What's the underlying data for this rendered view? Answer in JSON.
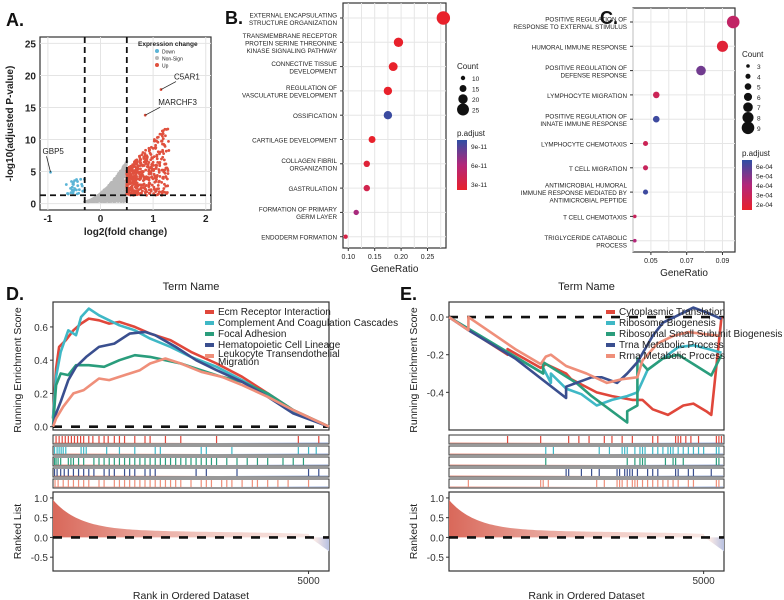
{
  "chart_data": [
    {
      "panel": "A.",
      "type": "scatter",
      "title": "",
      "xlabel": "log2(fold change)",
      "ylabel": "-log10(adjusted P-value)",
      "xlim": [
        -1.15,
        2.1
      ],
      "ylim": [
        -1,
        26
      ],
      "xticks": [
        -1,
        0,
        1,
        2
      ],
      "yticks": [
        0,
        5,
        10,
        15,
        20,
        25
      ],
      "grid": true,
      "vlines": [
        -0.3,
        0.5
      ],
      "hline": 1.3,
      "legend": {
        "title": "Expression change",
        "position": "top-right",
        "entries": [
          {
            "label": "Down",
            "color": "#5ab4d6"
          },
          {
            "label": "Non-Sign",
            "color": "#b8b8b8"
          },
          {
            "label": "Up",
            "color": "#e0513e"
          }
        ]
      },
      "annotations": [
        {
          "label": "C5AR1",
          "x": 1.15,
          "y": 17.8
        },
        {
          "label": "MARCHF3",
          "x": 0.85,
          "y": 13.8
        },
        {
          "label": "GBP5",
          "x": -0.95,
          "y": 4.9
        }
      ],
      "groups": {
        "down": {
          "x_range": [
            -0.65,
            -0.3
          ],
          "y_range": [
            1.3,
            4
          ]
        },
        "nonsig": {
          "x_range": [
            -0.3,
            0.5
          ],
          "y_range": [
            0,
            8.5
          ]
        },
        "up": {
          "x_range": [
            0.5,
            1.3
          ],
          "y_range": [
            1.3,
            13
          ]
        }
      }
    },
    {
      "panel": "B.",
      "type": "scatter",
      "subtype": "dotplot",
      "xlabel": "GeneRatio",
      "xlim": [
        0.09,
        0.285
      ],
      "xticks": [
        0.1,
        0.15,
        0.2,
        0.25
      ],
      "xtick_labels": [
        "0.10",
        "0.15",
        "0.20",
        "0.25"
      ],
      "categories": [
        "EXTERNAL ENCAPSULATING\nSTRUCTURE ORGANIZATION",
        "TRANSMEMBRANE RECEPTOR\nPROTEIN SERINE THREONINE\nKINASE SIGNALING PATHWAY",
        "CONNECTIVE TISSUE\nDEVELOPMENT",
        "REGULATION OF\nVASCULATURE DEVELOPMENT",
        "OSSIFICATION",
        "CARTILAGE DEVELOPMENT",
        "COLLAGEN FIBRIL\nORGANIZATION",
        "GASTRULATION",
        "FORMATION OF PRIMARY\nGERM LAYER",
        "ENDODERM FORMATION"
      ],
      "gene_ratio": [
        0.28,
        0.195,
        0.185,
        0.175,
        0.175,
        0.145,
        0.135,
        0.135,
        0.115,
        0.095
      ],
      "count": [
        28,
        20,
        19,
        18,
        18,
        15,
        14,
        14,
        12,
        10
      ],
      "p_adjust": [
        1e-12,
        1e-12,
        1e-12,
        1e-12,
        1.05e-10,
        1e-12,
        1e-11,
        2.5e-11,
        6e-11,
        2e-11
      ],
      "size_legend": {
        "title": "Count",
        "values": [
          10,
          15,
          20,
          25
        ]
      },
      "color_legend": {
        "title": "p.adjust",
        "ticks": [
          "9e-11",
          "6e-11",
          "3e-11"
        ],
        "range": [
          1e-12,
          1.1e-10
        ],
        "low_color": "#e8212b",
        "high_color": "#2f4fa4"
      }
    },
    {
      "panel": "C.",
      "type": "scatter",
      "subtype": "dotplot",
      "xlabel": "GeneRatio",
      "xlim": [
        0.04,
        0.097
      ],
      "xticks": [
        0.05,
        0.07,
        0.09
      ],
      "xtick_labels": [
        "0.05",
        "0.07",
        "0.09"
      ],
      "categories": [
        "POSITIVE REGULATION OF\nRESPONSE TO EXTERNAL STIMULUS",
        "HUMORAL IMMUNE RESPONSE",
        "POSITIVE REGULATION OF\nDEFENSE RESPONSE",
        "LYMPHOCYTE MIGRATION",
        "POSITIVE REGULATION OF\nINNATE IMMUNE RESPONSE",
        "LYMPHOCYTE CHEMOTAXIS",
        "T CELL MIGRATION",
        "ANTIMICROBIAL HUMORAL\nIMMUNE RESPONSE MEDIATED BY\nANTIMICROBIAL PEPTIDE",
        "T CELL CHEMOTAXIS",
        "TRIGLYCERIDE CATABOLIC\nPROCESS"
      ],
      "gene_ratio": [
        0.096,
        0.09,
        0.078,
        0.053,
        0.053,
        0.047,
        0.047,
        0.047,
        0.041,
        0.041
      ],
      "count": [
        9,
        8,
        7,
        5,
        5,
        4,
        4,
        4,
        3,
        3
      ],
      "p_adjust": [
        0.00035,
        0.0002,
        0.00055,
        0.0003,
        0.00065,
        0.0003,
        0.00032,
        0.00065,
        0.00032,
        0.00042
      ],
      "size_legend": {
        "title": "Count",
        "values": [
          3,
          4,
          5,
          6,
          7,
          8,
          9
        ]
      },
      "color_legend": {
        "title": "p.adjust",
        "ticks": [
          "6e-04",
          "5e-04",
          "4e-04",
          "3e-04",
          "2e-04"
        ],
        "range": [
          0.00016,
          0.00068
        ],
        "low_color": "#e8212b",
        "high_color": "#2f4fa4"
      }
    },
    {
      "panel": "D.",
      "type": "line",
      "title": "Term Name",
      "ylabel": "Running Enrichment Score",
      "ylim": [
        -0.02,
        0.75
      ],
      "yticks": [
        0.0,
        0.2,
        0.4,
        0.6
      ],
      "xlim": [
        0,
        5400
      ],
      "series": [
        {
          "name": "Ecm Receptor Interaction",
          "color": "#e0473b",
          "x": [
            0,
            60,
            120,
            250,
            400,
            550,
            700,
            900,
            1100,
            1300,
            1600,
            1900,
            2300,
            2700,
            3200,
            3700,
            4200,
            4700,
            5400
          ],
          "y": [
            0.05,
            0.35,
            0.48,
            0.52,
            0.58,
            0.62,
            0.65,
            0.64,
            0.62,
            0.63,
            0.6,
            0.56,
            0.52,
            0.45,
            0.38,
            0.3,
            0.2,
            0.1,
            0.0
          ]
        },
        {
          "name": "Complement And Coagulation Cascades",
          "color": "#3fb8c6",
          "x": [
            0,
            60,
            150,
            300,
            450,
            550,
            700,
            900,
            1100,
            1300,
            1600,
            1900,
            2300,
            2700,
            3200,
            3700,
            4200,
            4700,
            5400
          ],
          "y": [
            0.05,
            0.3,
            0.45,
            0.58,
            0.55,
            0.66,
            0.71,
            0.67,
            0.64,
            0.61,
            0.58,
            0.53,
            0.48,
            0.42,
            0.36,
            0.28,
            0.19,
            0.09,
            0.0
          ]
        },
        {
          "name": "Focal Adhesion",
          "color": "#2a9d7c",
          "x": [
            0,
            60,
            150,
            300,
            450,
            700,
            1000,
            1300,
            1600,
            1900,
            2200,
            2500,
            2900,
            3300,
            3700,
            4200,
            4700,
            5400
          ],
          "y": [
            0.0,
            0.25,
            0.32,
            0.31,
            0.37,
            0.37,
            0.36,
            0.4,
            0.43,
            0.42,
            0.4,
            0.38,
            0.34,
            0.3,
            0.27,
            0.2,
            0.1,
            0.0
          ]
        },
        {
          "name": "Hematopoietic Cell Lineage",
          "color": "#3a4f8f",
          "x": [
            0,
            60,
            150,
            300,
            450,
            650,
            900,
            1200,
            1500,
            1800,
            2000,
            2400,
            2800,
            3200,
            3700,
            4200,
            4700,
            5400
          ],
          "y": [
            0.0,
            0.08,
            0.15,
            0.28,
            0.36,
            0.42,
            0.48,
            0.5,
            0.56,
            0.57,
            0.55,
            0.48,
            0.4,
            0.34,
            0.27,
            0.18,
            0.08,
            0.0
          ]
        },
        {
          "name": "Leukocyte Transendothelial\nMigration",
          "color": "#ef8f7a",
          "x": [
            0,
            60,
            200,
            400,
            600,
            900,
            1100,
            1400,
            1700,
            1900,
            2200,
            2500,
            2900,
            3300,
            3700,
            4200,
            4700,
            5400
          ],
          "y": [
            0.0,
            0.05,
            0.12,
            0.2,
            0.22,
            0.29,
            0.28,
            0.31,
            0.34,
            0.38,
            0.41,
            0.38,
            0.33,
            0.3,
            0.25,
            0.18,
            0.1,
            0.0
          ]
        }
      ],
      "legend_position": "top-right",
      "hits": [
        [
          60,
          120,
          180,
          240,
          300,
          360,
          420,
          480,
          540,
          600,
          700,
          780,
          900,
          1000,
          1080,
          1200,
          1300,
          1400,
          1600,
          1800,
          1900,
          2200,
          2500,
          3200,
          4800,
          5200
        ],
        [
          30,
          80,
          120,
          160,
          200,
          250,
          550,
          600,
          650,
          1050,
          1300,
          1600,
          2000,
          2100,
          2900,
          3000,
          3500,
          4800,
          5000,
          5150
        ],
        [
          30,
          60,
          100,
          150,
          300,
          350,
          400,
          500,
          600,
          800,
          900,
          1000,
          1100,
          1200,
          1300,
          1400,
          1500,
          1600,
          1700,
          1800,
          1900,
          2000,
          2100,
          2200,
          2300,
          2400,
          2500,
          2600,
          2700,
          2800,
          2900,
          3000,
          3100,
          3200,
          3400,
          3600,
          3800,
          4000,
          4200,
          4500,
          4700,
          4900
        ],
        [
          30,
          80,
          150,
          220,
          300,
          400,
          500,
          600,
          700,
          800,
          1000,
          1100,
          1200,
          1400,
          1500,
          1600,
          1800,
          1900,
          2000,
          2800,
          3000,
          3600,
          5000,
          5200
        ],
        [
          40,
          100,
          200,
          300,
          400,
          500,
          600,
          700,
          900,
          1000,
          1200,
          1300,
          1400,
          1500,
          1600,
          1700,
          1800,
          1900,
          2000,
          2100,
          2200,
          2300,
          2400,
          2500,
          2700,
          2900,
          3000,
          3100,
          3300,
          3400,
          3500,
          3700,
          3900,
          4000,
          4200,
          4400,
          4600,
          5000
        ]
      ],
      "ranked_list": {
        "ylabel": "Ranked List",
        "xlabel": "Rank in Ordered Dataset",
        "yticks": [
          1.0,
          0.5,
          0.0,
          -0.5
        ],
        "ylim": [
          -0.85,
          1.15
        ],
        "xticks": [
          5000
        ],
        "n": 5400,
        "max": 0.95,
        "min": -0.35
      }
    },
    {
      "panel": "E.",
      "type": "line",
      "title": "Term Name",
      "ylabel": "Running Enrichment Score",
      "ylim": [
        -0.6,
        0.08
      ],
      "yticks": [
        0.0,
        -0.2,
        -0.4
      ],
      "xlim": [
        0,
        5400
      ],
      "series": [
        {
          "name": "Cytoplasmic Translation",
          "color": "#e0473b",
          "x": [
            0,
            1150,
            1150,
            1800,
            1900,
            2300,
            2400,
            2900,
            3200,
            3600,
            3800,
            4000,
            4300,
            4600,
            4800,
            5050,
            5150,
            5350
          ],
          "y": [
            0.0,
            -0.2,
            -0.17,
            -0.27,
            -0.25,
            -0.3,
            -0.33,
            -0.4,
            -0.42,
            -0.44,
            -0.44,
            -0.49,
            -0.52,
            -0.47,
            -0.46,
            -0.5,
            -0.52,
            0.0
          ]
        },
        {
          "name": "Ribosome Biogenesis",
          "color": "#3fb8c6",
          "x": [
            0,
            1850,
            1850,
            2000,
            2000,
            2300,
            2600,
            2900,
            3200,
            3500,
            3700,
            3900,
            4200,
            4500,
            4800,
            5100,
            5350
          ],
          "y": [
            0.0,
            -0.3,
            -0.27,
            -0.35,
            -0.3,
            -0.38,
            -0.41,
            -0.47,
            -0.44,
            -0.42,
            -0.4,
            -0.28,
            -0.22,
            -0.16,
            -0.15,
            -0.17,
            -0.19
          ]
        },
        {
          "name": "Ribosomal Small Subunit Biogenesis",
          "color": "#2a9d7c",
          "x": [
            0,
            1850,
            1850,
            2500,
            2800,
            3500,
            3500,
            3700,
            3700,
            3900,
            4200,
            4500,
            4800,
            5150,
            5350
          ],
          "y": [
            0.0,
            -0.3,
            -0.24,
            -0.35,
            -0.42,
            -0.56,
            -0.5,
            -0.47,
            -0.22,
            -0.28,
            -0.22,
            -0.2,
            -0.25,
            -0.31,
            -0.2
          ]
        },
        {
          "name": "Trna Metabolic Process",
          "color": "#3a4f8f",
          "x": [
            0,
            380,
            380,
            1300,
            2300,
            2300,
            2800,
            3000,
            3300,
            3500,
            3700,
            4000,
            4200,
            4500,
            4800,
            5100,
            5350
          ],
          "y": [
            0.0,
            -0.07,
            -0.07,
            -0.22,
            -0.43,
            -0.37,
            -0.32,
            -0.32,
            -0.35,
            -0.3,
            -0.24,
            -0.1,
            -0.03,
            0.01,
            0.05,
            0.02,
            -0.01
          ]
        },
        {
          "name": "Rrna Metabolic Process",
          "color": "#ef8f7a",
          "x": [
            0,
            380,
            380,
            1300,
            1800,
            1900,
            2000,
            2300,
            2700,
            3100,
            3400,
            3700,
            3800,
            4100,
            4400,
            4700,
            5000,
            5350
          ],
          "y": [
            0.0,
            -0.07,
            0.0,
            -0.17,
            -0.25,
            -0.21,
            -0.2,
            -0.26,
            -0.3,
            -0.35,
            -0.33,
            -0.32,
            -0.23,
            -0.14,
            -0.1,
            -0.08,
            -0.09,
            -0.1
          ]
        }
      ],
      "legend_position": "top-right",
      "hits": [
        [
          1150,
          1800,
          2350,
          2550,
          2750,
          3050,
          3200,
          3400,
          3600,
          4000,
          4100,
          4450,
          4500,
          4550,
          4650,
          4750,
          4900,
          5250,
          5300,
          5350
        ],
        [
          1900,
          2050,
          2950,
          3150,
          3400,
          3450,
          3500,
          3650,
          3750,
          3800,
          3850,
          4000,
          4100,
          4200,
          4300,
          4350,
          4400,
          4500,
          4600,
          4700,
          4800,
          4900,
          5000,
          5250,
          5300
        ],
        [
          1900,
          3500,
          3650,
          3750,
          3800,
          3850,
          4250,
          4400,
          4450,
          4600,
          5250,
          5300
        ],
        [
          2300,
          2350,
          2600,
          2800,
          2950,
          3300,
          3350,
          3450,
          3500,
          3550,
          3600,
          3700,
          3900,
          4000,
          4100,
          4450,
          4500,
          4700,
          4800,
          5150
        ],
        [
          380,
          1800,
          1850,
          1950,
          2900,
          3050,
          3300,
          3350,
          3400,
          3500,
          3600,
          3650,
          3700,
          3800,
          3900,
          4000,
          4100,
          4200,
          4300,
          4400,
          4500,
          4700,
          4800,
          5250,
          5300
        ]
      ],
      "ranked_list": {
        "ylabel": "Ranked List",
        "xlabel": "Rank in Ordered Dataset",
        "yticks": [
          1.0,
          0.5,
          0.0,
          -0.5
        ],
        "ylim": [
          -0.85,
          1.15
        ],
        "xticks": [
          5000
        ],
        "n": 5400,
        "max": 0.95,
        "min": -0.35
      }
    }
  ]
}
